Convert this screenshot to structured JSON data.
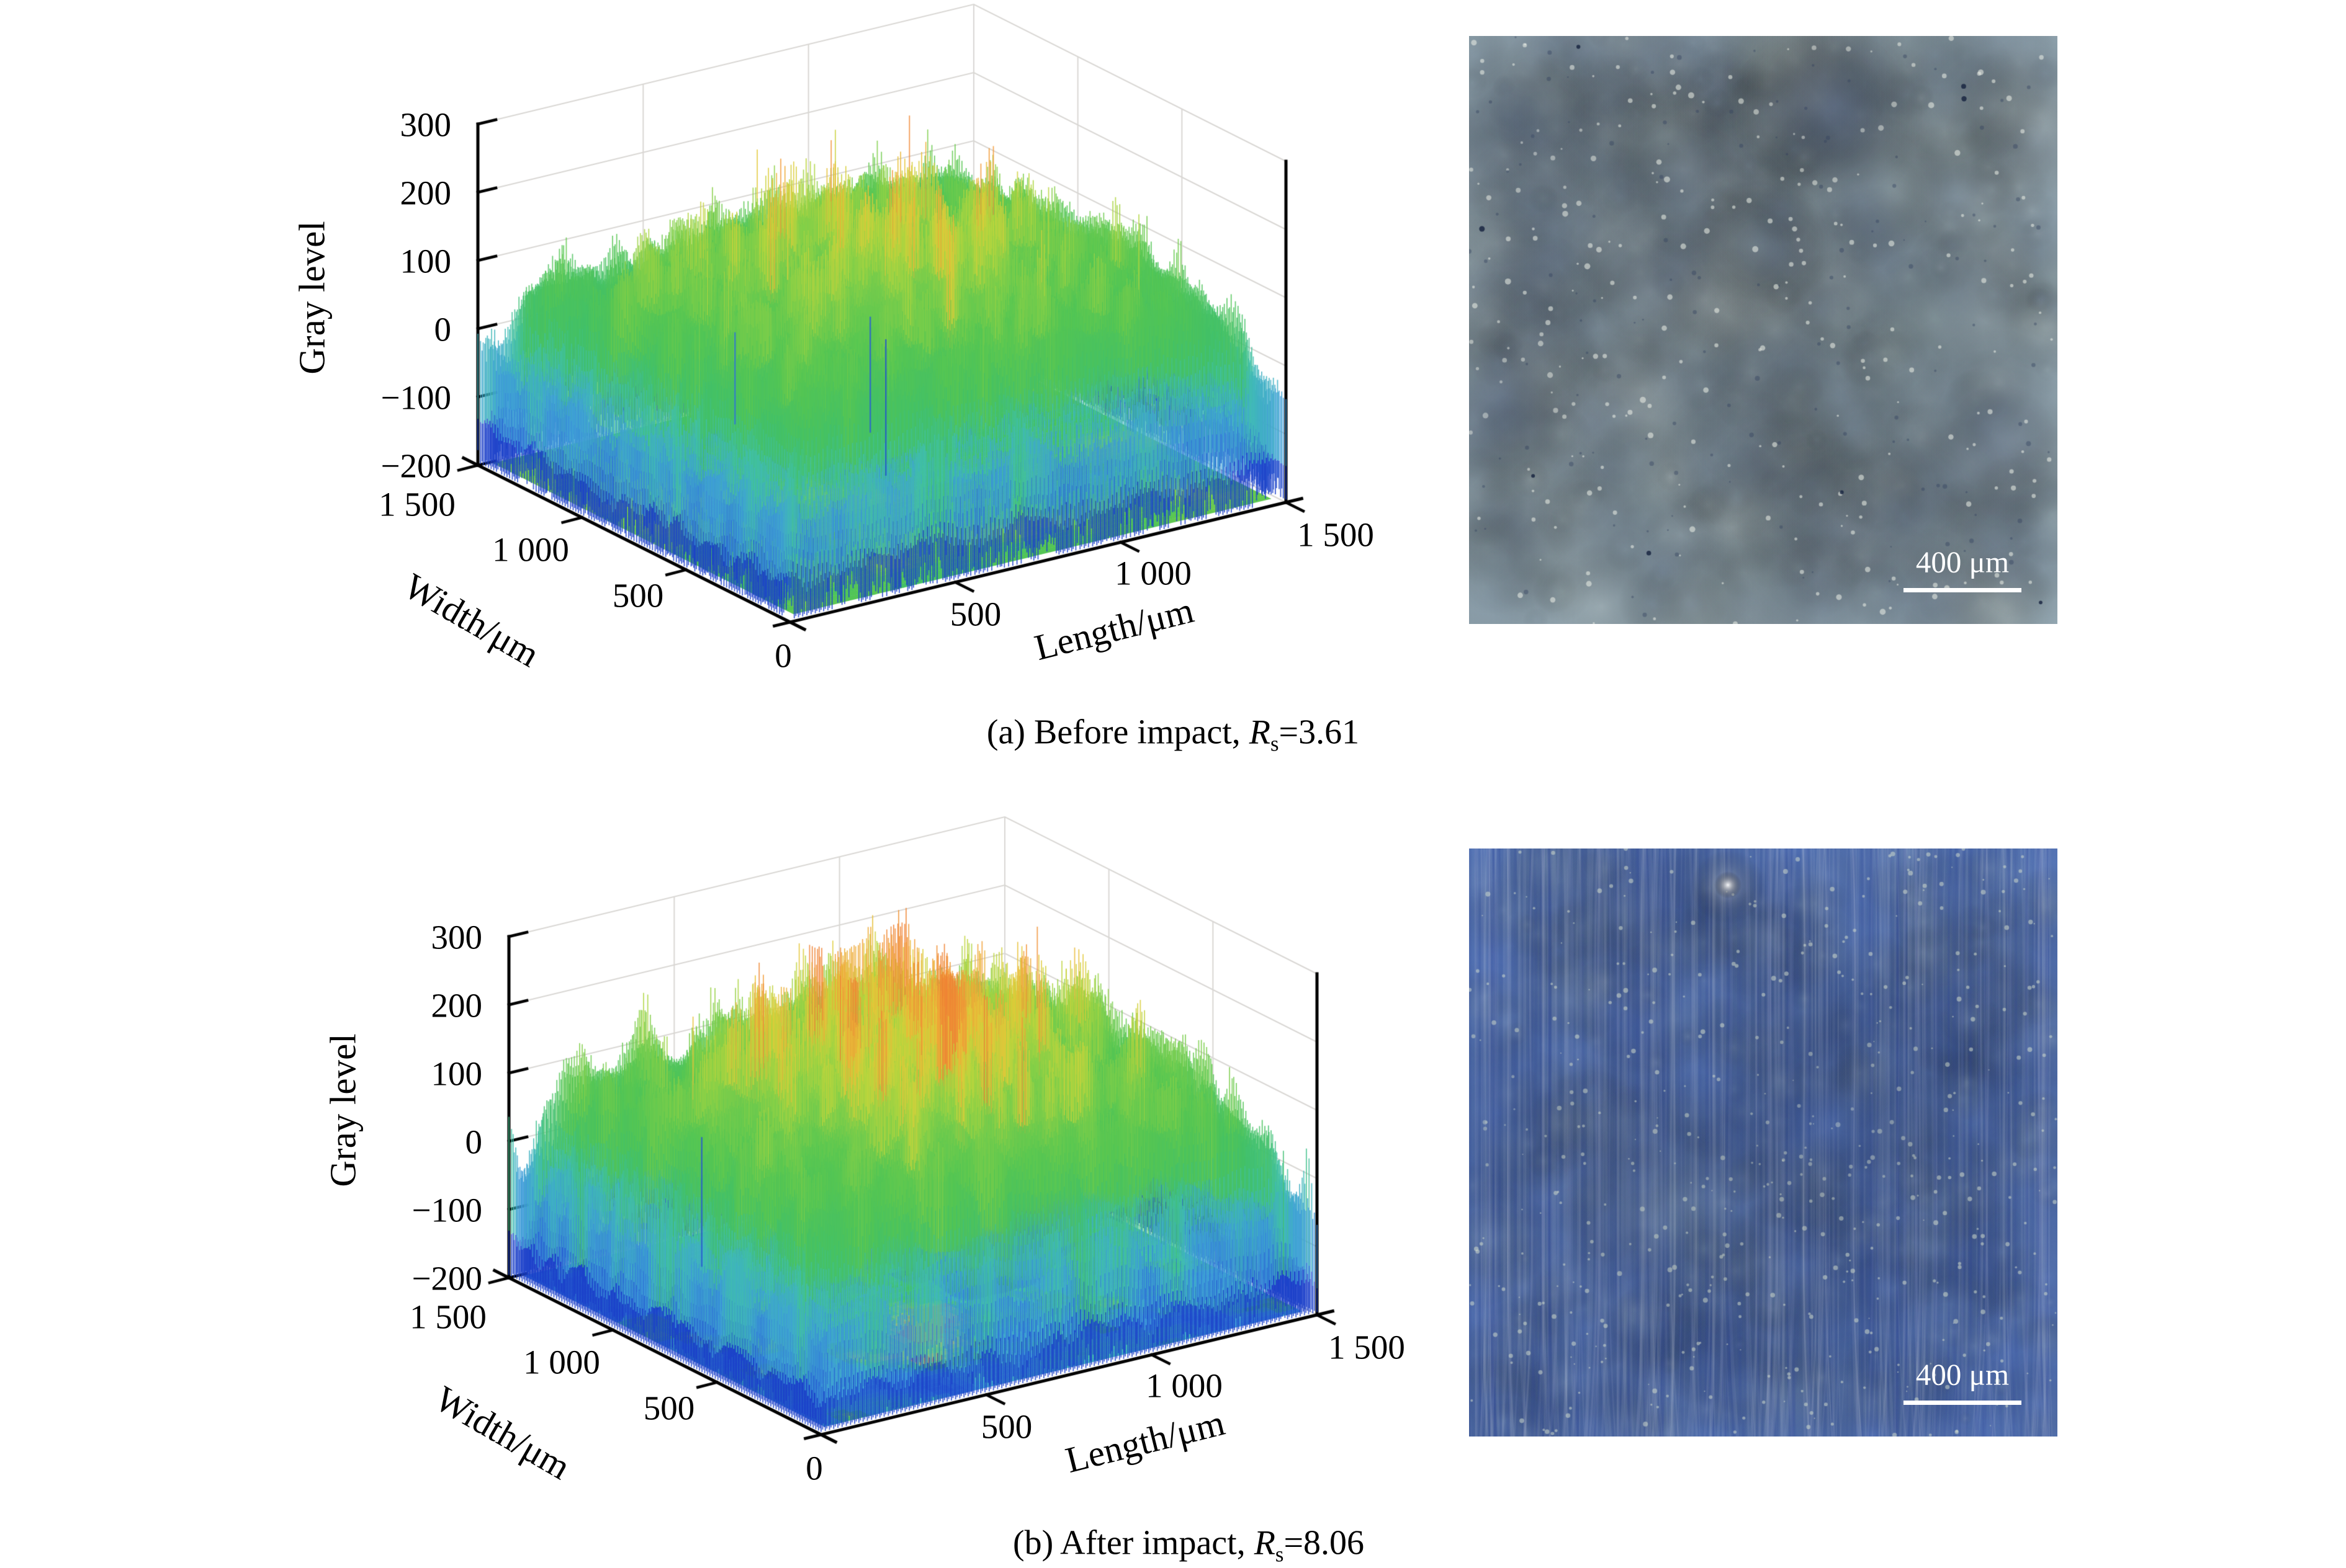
{
  "page": {
    "background": "#ffffff"
  },
  "panels": [
    {
      "id": "a",
      "plot": {
        "zlabel": "Gray level",
        "xlabel": "Length/μm",
        "ylabel": "Width/μm",
        "z_ticks": [
          "300",
          "200",
          "100",
          "0",
          "−100",
          "−200"
        ],
        "width_ticks": [
          "1 500",
          "1 000",
          "500",
          "0"
        ],
        "length_ticks": [
          "500",
          "1 000",
          "1 500"
        ]
      },
      "caption": {
        "prefix": "(a) Before impact, ",
        "symbol": "R",
        "subscript": "s",
        "value": "=3.61"
      },
      "micrograph": {
        "scale_bar": "400 μm"
      }
    },
    {
      "id": "b",
      "plot": {
        "zlabel": "Gray level",
        "xlabel": "Length/μm",
        "ylabel": "Width/μm",
        "z_ticks": [
          "300",
          "200",
          "100",
          "0",
          "−100",
          "−200"
        ],
        "width_ticks": [
          "1 500",
          "1 000",
          "500",
          "0"
        ],
        "length_ticks": [
          "500",
          "1 000",
          "1 500"
        ]
      },
      "caption": {
        "prefix": "(b) After impact, ",
        "symbol": "R",
        "subscript": "s",
        "value": "=8.06"
      },
      "micrograph": {
        "scale_bar": "400 μm"
      }
    }
  ],
  "chart_data": [
    {
      "type": "heatmap",
      "render_style": "3d-surface-with-floor-projection",
      "title": "(a) Before impact, Rs=3.61",
      "xlabel": "Length/μm",
      "ylabel": "Width/μm",
      "zlabel": "Gray level",
      "x_range": [
        0,
        1500
      ],
      "y_range": [
        0,
        1500
      ],
      "z_range": [
        -200,
        300
      ],
      "x_ticks": [
        0,
        500,
        1000,
        1500
      ],
      "y_ticks": [
        0,
        500,
        1000,
        1500
      ],
      "z_ticks": [
        -200,
        -100,
        0,
        100,
        200,
        300
      ],
      "roughness_Rs": 3.61,
      "surface_summary": {
        "center_mean_level": 140,
        "edge_level": -60,
        "spike_peak_level": 285,
        "undershoot_needles": -170,
        "colormap": "blue→green→yellow→orange (jet-like)"
      },
      "floor_projection": "mostly green-teal with scattered blue patches",
      "grid": true,
      "legend": false,
      "micrograph_scale_bar_um": 400
    },
    {
      "type": "heatmap",
      "render_style": "3d-surface-with-floor-projection",
      "title": "(b) After impact, Rs=8.06",
      "xlabel": "Length/μm",
      "ylabel": "Width/μm",
      "zlabel": "Gray level",
      "x_range": [
        0,
        1500
      ],
      "y_range": [
        0,
        1500
      ],
      "z_range": [
        -200,
        300
      ],
      "x_ticks": [
        0,
        500,
        1000,
        1500
      ],
      "y_ticks": [
        0,
        500,
        1000,
        1500
      ],
      "z_ticks": [
        -200,
        -100,
        0,
        100,
        200,
        300
      ],
      "roughness_Rs": 8.06,
      "surface_summary": {
        "center_mean_level": 160,
        "edge_level": -65,
        "spike_peak_level": 295,
        "deep_blue_curtain_level": -160,
        "colormap": "blue→green→yellow→orange (jet-like)"
      },
      "floor_projection": "mostly blue with green mottling and small yellow patches",
      "grid": true,
      "legend": false,
      "micrograph_scale_bar_um": 400
    }
  ],
  "colors": {
    "axis": "#000000",
    "grid": "#d9d7d4",
    "scale_bar": "#ffffff",
    "level_palette": [
      [
        0.0,
        "#1a3ec8"
      ],
      [
        0.2,
        "#2f6fd8"
      ],
      [
        0.32,
        "#3fa0d8"
      ],
      [
        0.42,
        "#41c0ae"
      ],
      [
        0.52,
        "#41c06a"
      ],
      [
        0.62,
        "#55c653"
      ],
      [
        0.72,
        "#82cf49"
      ],
      [
        0.8,
        "#b8d63e"
      ],
      [
        0.86,
        "#e4ca39"
      ],
      [
        0.93,
        "#f29c38"
      ],
      [
        1.0,
        "#ee7e33"
      ]
    ],
    "micro_a": {
      "base": "#97abb6",
      "tones": [
        "#8ba0b0",
        "#a9bcb1",
        "#7e93aa",
        "#c6d2cd",
        "#677b9e",
        "#e6eee8"
      ],
      "dark": "#54668c",
      "speck_light": "#eef3ea",
      "speck_dark": "#33415e",
      "dot": "#1a2742"
    },
    "micro_b": {
      "base": "#5d80c8",
      "tones": [
        "#3a5cb4",
        "#7292d2",
        "#9fb6c2",
        "#ccd7c6",
        "#4a6abc"
      ],
      "speck_light": "#dce6d2",
      "bright": "#ffffff"
    }
  }
}
